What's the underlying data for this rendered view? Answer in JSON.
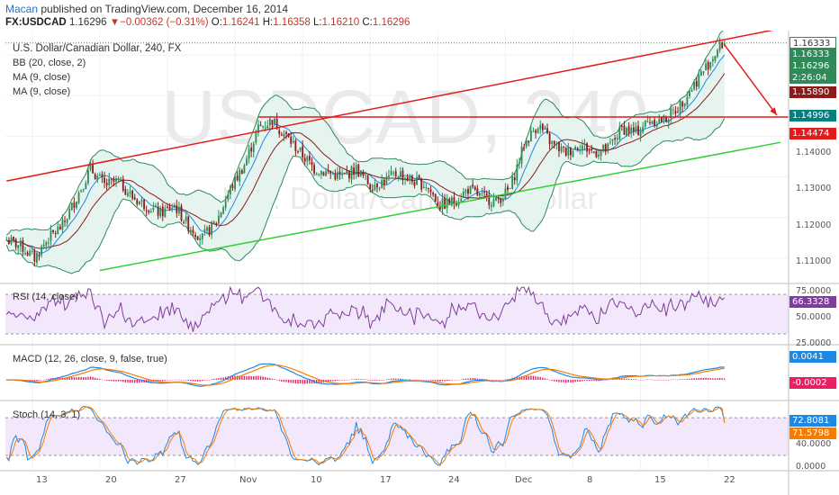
{
  "header": {
    "author": "Macan",
    "published": "published on TradingView.com, December 16, 2014",
    "symbol": "FX:USDCAD",
    "last": "1.16296",
    "change_arrow": "▼",
    "change": "−0.00362 (−0.31%)",
    "o_label": "O:",
    "o_value": "1.16241",
    "h_label": "H:",
    "h_value": "1.16358",
    "l_label": "L:",
    "l_value": "1.16210",
    "c_label": "C:",
    "c_value": "1.16296"
  },
  "legend": {
    "title": "U.S. Dollar/Canadian Dollar, 240, FX",
    "bb": "BB (20, close, 2)",
    "ma1": "MA (9, close)",
    "ma2": "MA (9, close)",
    "rsi": "RSI (14, close)",
    "macd": "MACD (12, 26, close, 9, false, true)",
    "stoch": "Stoch (14, 3, 1)"
  },
  "watermark": {
    "symbol": "USDCAD, 240",
    "name": "U.S. Dollar/Canadian Dollar"
  },
  "price_axis": {
    "labels": [
      "1.14000",
      "1.13000",
      "1.12000",
      "1.11000"
    ],
    "tags": [
      {
        "text": "1.16333",
        "color": "#ffffff",
        "text_color": "#333333"
      },
      {
        "text": "1.16333",
        "color": "#2e8b57",
        "text_color": "#ffffff"
      },
      {
        "text": "1.16296",
        "color": "#2e8b57",
        "text_color": "#ffffff"
      },
      {
        "text": "2:26:04",
        "color": "#2e8b57",
        "text_color": "#ffffff"
      },
      {
        "text": "1.15890",
        "color": "#8b1a1a",
        "text_color": "#ffffff"
      },
      {
        "text": "1.14996",
        "color": "#008080",
        "text_color": "#ffffff"
      },
      {
        "text": "1.14474",
        "color": "#e31b1b",
        "text_color": "#ffffff"
      }
    ]
  },
  "rsi_axis": {
    "labels": [
      "75.0000",
      "50.0000",
      "25.0000"
    ],
    "tag": "66.3328",
    "tag_color": "#7e3d9c"
  },
  "macd_axis": {
    "tags": [
      {
        "text": "0.0041",
        "color": "#1e88e5"
      },
      {
        "text": "-0.0002",
        "color": "#e91e63"
      }
    ]
  },
  "stoch_axis": {
    "labels": [
      "40.0000",
      "0.0000"
    ],
    "tags": [
      {
        "text": "72.8081",
        "color": "#1e88e5"
      },
      {
        "text": "71.5798",
        "color": "#f57c00"
      }
    ]
  },
  "time_axis": {
    "labels": [
      "13",
      "20",
      "27",
      "Nov",
      "10",
      "17",
      "24",
      "Dec",
      "8",
      "15",
      "22"
    ]
  },
  "colors": {
    "up_candle": "#2e8b57",
    "down_candle": "#8b1a1a",
    "bb_line": "#2e8b57",
    "bb_fill": "#e6f4ef",
    "channel_red": "#e31b1b",
    "channel_green": "#33cc33",
    "rsi_line": "#7e3d9c",
    "rsi_fill": "#f3e8fb",
    "macd_line": "#1e88e5",
    "signal_line": "#f57c00",
    "hist": "#e91e63"
  },
  "chart_data": {
    "type": "candlestick",
    "instrument": "FX:USDCAD",
    "timeframe": "240",
    "price_range": [
      1.104,
      1.166
    ],
    "close_path": [
      [
        0,
        1.1145
      ],
      [
        6,
        1.113
      ],
      [
        12,
        1.11
      ],
      [
        18,
        1.115
      ],
      [
        24,
        1.118
      ],
      [
        30,
        1.125
      ],
      [
        36,
        1.132
      ],
      [
        42,
        1.128
      ],
      [
        48,
        1.129
      ],
      [
        54,
        1.125
      ],
      [
        60,
        1.123
      ],
      [
        66,
        1.121
      ],
      [
        72,
        1.123
      ],
      [
        78,
        1.118
      ],
      [
        84,
        1.115
      ],
      [
        90,
        1.119
      ],
      [
        96,
        1.127
      ],
      [
        102,
        1.133
      ],
      [
        108,
        1.142
      ],
      [
        114,
        1.144
      ],
      [
        120,
        1.14
      ],
      [
        126,
        1.136
      ],
      [
        132,
        1.132
      ],
      [
        138,
        1.131
      ],
      [
        144,
        1.13
      ],
      [
        150,
        1.132
      ],
      [
        156,
        1.128
      ],
      [
        162,
        1.129
      ],
      [
        168,
        1.131
      ],
      [
        174,
        1.129
      ],
      [
        180,
        1.128
      ],
      [
        186,
        1.123
      ],
      [
        192,
        1.124
      ],
      [
        198,
        1.127
      ],
      [
        204,
        1.125
      ],
      [
        210,
        1.124
      ],
      [
        216,
        1.127
      ],
      [
        222,
        1.138
      ],
      [
        228,
        1.143
      ],
      [
        234,
        1.138
      ],
      [
        240,
        1.136
      ],
      [
        246,
        1.138
      ],
      [
        252,
        1.136
      ],
      [
        258,
        1.137
      ],
      [
        264,
        1.142
      ],
      [
        270,
        1.141
      ],
      [
        276,
        1.144
      ],
      [
        282,
        1.144
      ],
      [
        288,
        1.147
      ],
      [
        294,
        1.152
      ],
      [
        300,
        1.157
      ],
      [
        306,
        1.162
      ],
      [
        308,
        1.163
      ]
    ],
    "channel_upper": [
      [
        0,
        1.129
      ],
      [
        332,
        1.1665
      ]
    ],
    "channel_lower": [
      [
        40,
        1.107
      ],
      [
        332,
        1.1385
      ]
    ],
    "support_level": 1.14474,
    "projection": [
      [
        308,
        1.1625
      ],
      [
        332,
        1.14474
      ]
    ],
    "rsi_range": [
      20,
      80
    ],
    "rsi_last": 66.3328,
    "macd_last": 0.0041,
    "macd_hist_last": -0.0002,
    "stoch_k_last": 72.8081,
    "stoch_d_last": 71.5798,
    "x_ticks": [
      {
        "label": "13",
        "bar": 11
      },
      {
        "label": "20",
        "bar": 40
      },
      {
        "label": "27",
        "bar": 69
      },
      {
        "label": "Nov",
        "bar": 98
      },
      {
        "label": "10",
        "bar": 127
      },
      {
        "label": "17",
        "bar": 156
      },
      {
        "label": "24",
        "bar": 185
      },
      {
        "label": "Dec",
        "bar": 214
      },
      {
        "label": "8",
        "bar": 243
      },
      {
        "label": "15",
        "bar": 272
      },
      {
        "label": "22",
        "bar": 301
      }
    ],
    "total_bars": 336
  }
}
